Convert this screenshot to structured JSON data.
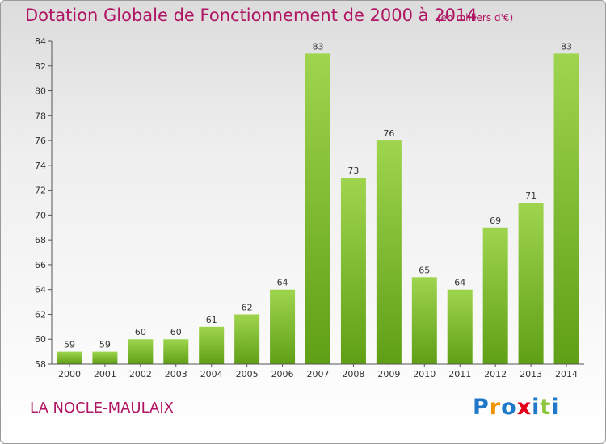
{
  "chart_data": {
    "type": "bar",
    "title": "Dotation Globale de Fonctionnement de 2000 à 2014",
    "subtitle": "(en milliers d'€)",
    "categories": [
      "2000",
      "2001",
      "2002",
      "2003",
      "2004",
      "2005",
      "2006",
      "2007",
      "2008",
      "2009",
      "2010",
      "2011",
      "2012",
      "2013",
      "2014"
    ],
    "values": [
      59,
      59,
      60,
      60,
      61,
      62,
      64,
      83,
      73,
      76,
      65,
      64,
      69,
      71,
      83
    ],
    "data_labels": [
      "59",
      "59",
      "60",
      "60",
      "61",
      "62",
      "64",
      "83",
      "73",
      "76",
      "65",
      "64",
      "69",
      "71",
      "83"
    ],
    "ylim": [
      58,
      84
    ],
    "yticks": [
      "58",
      "60",
      "62",
      "64",
      "66",
      "68",
      "70",
      "72",
      "74",
      "76",
      "78",
      "80",
      "82",
      "84"
    ],
    "grid": false,
    "bar_color": "#7cbf2f"
  },
  "location": "LA NOCLE-MAULAIX",
  "logo": {
    "text": "Proxiti",
    "letter_colors": [
      "#1f78c8",
      "#f39200",
      "#1f78c8",
      "#e2001a",
      "#1f78c8",
      "#8dc63f",
      "#1f78c8"
    ]
  }
}
